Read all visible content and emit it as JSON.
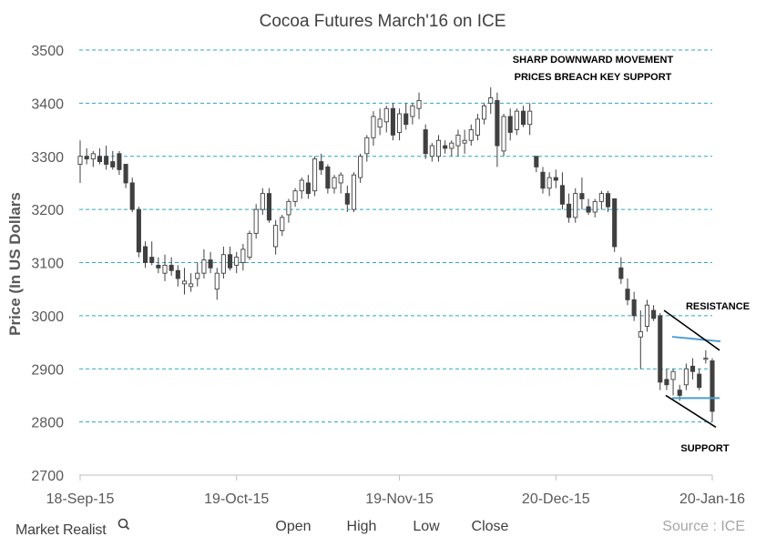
{
  "title": "Cocoa Futures  March'16  on ICE",
  "ylabel": "Price (In US Dollars",
  "annotations": {
    "headline1": "SHARP DOWNWARD  MOVEMENT",
    "headline2": "PRICES BREACH KEY SUPPORT",
    "resistance": "RESISTANCE",
    "support": "SUPPORT"
  },
  "legend": {
    "open": "Open",
    "high": "High",
    "low": "Low",
    "close": "Close"
  },
  "brand": "Market Realist",
  "source": "Source : ICE",
  "colors": {
    "grid": "#29a8c9",
    "bull": "#ffffff",
    "bear": "#404040",
    "wick": "#404040",
    "hline": "#4b9ed3",
    "trend": "#000000"
  },
  "chart_data": {
    "type": "candlestick",
    "y_ticks": [
      2700,
      2800,
      2900,
      3000,
      3100,
      3200,
      3300,
      3400,
      3500
    ],
    "ylim": [
      2700,
      3500
    ],
    "x_ticks": [
      "18-Sep-15",
      "19-Oct-15",
      "19-Nov-15",
      "20-Dec-15",
      "20-Jan-16"
    ],
    "grid": "horizontal dashed",
    "candles": [
      [
        3285,
        3330,
        3250,
        3300
      ],
      [
        3300,
        3315,
        3285,
        3295
      ],
      [
        3295,
        3310,
        3280,
        3305
      ],
      [
        3300,
        3315,
        3285,
        3290
      ],
      [
        3300,
        3320,
        3275,
        3285
      ],
      [
        3290,
        3310,
        3275,
        3280
      ],
      [
        3305,
        3310,
        3265,
        3275
      ],
      [
        3285,
        3285,
        3240,
        3250
      ],
      [
        3250,
        3260,
        3195,
        3200
      ],
      [
        3200,
        3205,
        3110,
        3120
      ],
      [
        3130,
        3140,
        3090,
        3100
      ],
      [
        3110,
        3140,
        3095,
        3100
      ],
      [
        3095,
        3110,
        3080,
        3090
      ],
      [
        3080,
        3115,
        3065,
        3095
      ],
      [
        3095,
        3110,
        3075,
        3085
      ],
      [
        3085,
        3095,
        3055,
        3070
      ],
      [
        3060,
        3090,
        3040,
        3065
      ],
      [
        3055,
        3080,
        3045,
        3060
      ],
      [
        3070,
        3100,
        3055,
        3080
      ],
      [
        3080,
        3125,
        3070,
        3105
      ],
      [
        3105,
        3120,
        3080,
        3090
      ],
      [
        3050,
        3090,
        3030,
        3080
      ],
      [
        3080,
        3130,
        3070,
        3115
      ],
      [
        3115,
        3130,
        3085,
        3090
      ],
      [
        3095,
        3120,
        3080,
        3110
      ],
      [
        3100,
        3135,
        3085,
        3125
      ],
      [
        3110,
        3160,
        3105,
        3155
      ],
      [
        3155,
        3210,
        3145,
        3200
      ],
      [
        3200,
        3240,
        3190,
        3230
      ],
      [
        3230,
        3240,
        3175,
        3180
      ],
      [
        3130,
        3180,
        3115,
        3170
      ],
      [
        3160,
        3190,
        3150,
        3185
      ],
      [
        3190,
        3220,
        3175,
        3215
      ],
      [
        3215,
        3240,
        3205,
        3235
      ],
      [
        3235,
        3260,
        3220,
        3255
      ],
      [
        3250,
        3265,
        3220,
        3230
      ],
      [
        3235,
        3300,
        3225,
        3295
      ],
      [
        3290,
        3305,
        3265,
        3275
      ],
      [
        3280,
        3285,
        3230,
        3240
      ],
      [
        3240,
        3265,
        3230,
        3260
      ],
      [
        3250,
        3270,
        3230,
        3265
      ],
      [
        3230,
        3245,
        3195,
        3210
      ],
      [
        3200,
        3270,
        3195,
        3265
      ],
      [
        3260,
        3305,
        3250,
        3300
      ],
      [
        3305,
        3340,
        3290,
        3335
      ],
      [
        3335,
        3385,
        3320,
        3375
      ],
      [
        3355,
        3390,
        3340,
        3370
      ],
      [
        3365,
        3395,
        3345,
        3390
      ],
      [
        3390,
        3400,
        3330,
        3340
      ],
      [
        3345,
        3390,
        3330,
        3380
      ],
      [
        3380,
        3400,
        3350,
        3360
      ],
      [
        3375,
        3400,
        3360,
        3395
      ],
      [
        3390,
        3420,
        3370,
        3405
      ],
      [
        3350,
        3360,
        3295,
        3305
      ],
      [
        3300,
        3325,
        3290,
        3320
      ],
      [
        3300,
        3340,
        3290,
        3330
      ],
      [
        3320,
        3330,
        3305,
        3315
      ],
      [
        3315,
        3330,
        3300,
        3325
      ],
      [
        3320,
        3350,
        3300,
        3340
      ],
      [
        3325,
        3350,
        3305,
        3330
      ],
      [
        3330,
        3360,
        3320,
        3350
      ],
      [
        3340,
        3380,
        3330,
        3370
      ],
      [
        3370,
        3400,
        3360,
        3395
      ],
      [
        3400,
        3430,
        3380,
        3410
      ],
      [
        3405,
        3420,
        3280,
        3320
      ],
      [
        3310,
        3380,
        3300,
        3375
      ],
      [
        3375,
        3390,
        3330,
        3345
      ],
      [
        3350,
        3390,
        3340,
        3385
      ],
      [
        3385,
        3395,
        3355,
        3360
      ],
      [
        3360,
        3400,
        3340,
        3385
      ],
      [
        3300,
        3300,
        3270,
        3280
      ],
      [
        3270,
        3280,
        3230,
        3240
      ],
      [
        3240,
        3270,
        3225,
        3260
      ],
      [
        3260,
        3275,
        3240,
        3255
      ],
      [
        3245,
        3270,
        3200,
        3210
      ],
      [
        3210,
        3230,
        3175,
        3185
      ],
      [
        3185,
        3240,
        3175,
        3230
      ],
      [
        3230,
        3260,
        3200,
        3220
      ],
      [
        3205,
        3220,
        3190,
        3195
      ],
      [
        3195,
        3220,
        3185,
        3215
      ],
      [
        3215,
        3235,
        3200,
        3230
      ],
      [
        3230,
        3235,
        3195,
        3205
      ],
      [
        3220,
        3220,
        3120,
        3130
      ],
      [
        3090,
        3110,
        3060,
        3070
      ],
      [
        3050,
        3070,
        3020,
        3030
      ],
      [
        3030,
        3045,
        2990,
        3000
      ],
      [
        2960,
        3010,
        2900,
        2970
      ],
      [
        2980,
        3030,
        2970,
        3020
      ],
      [
        3010,
        3020,
        2990,
        2995
      ],
      [
        3000,
        3005,
        2860,
        2875
      ],
      [
        2880,
        2900,
        2860,
        2870
      ],
      [
        2880,
        2900,
        2850,
        2895
      ],
      [
        2860,
        2870,
        2840,
        2850
      ],
      [
        2870,
        2910,
        2860,
        2900
      ],
      [
        2905,
        2920,
        2880,
        2895
      ],
      [
        2890,
        2900,
        2860,
        2865
      ],
      [
        2920,
        2935,
        2910,
        2920
      ],
      [
        2915,
        2920,
        2800,
        2820
      ]
    ],
    "lines": {
      "resistance_hline": 2950,
      "support_hline": 2845
    }
  }
}
